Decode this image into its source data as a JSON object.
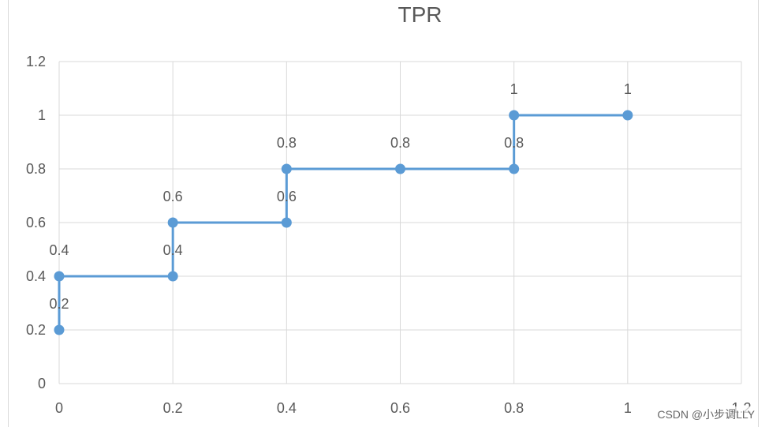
{
  "chart_data": {
    "type": "line",
    "title": "TPR",
    "xlabel": "",
    "ylabel": "",
    "xlim": [
      0,
      1.2
    ],
    "ylim": [
      0,
      1.2
    ],
    "x_ticks": [
      "0",
      "0.2",
      "0.4",
      "0.6",
      "0.8",
      "1",
      "1.2"
    ],
    "y_ticks": [
      "0",
      "0.2",
      "0.4",
      "0.6",
      "0.8",
      "1",
      "1.2"
    ],
    "grid": true,
    "line_style": "straight lines with markers",
    "series": [
      {
        "x": [
          0,
          0,
          0.2,
          0.2,
          0.4,
          0.4,
          0.6,
          0.8,
          0.8,
          1
        ],
        "y": [
          0.2,
          0.4,
          0.4,
          0.6,
          0.6,
          0.8,
          0.8,
          0.8,
          1,
          1
        ],
        "labels": [
          "0.2",
          "0.4",
          "0.4",
          "0.6",
          "0.6",
          "0.8",
          "0.8",
          "0.8",
          "1",
          "1"
        ],
        "color": "#5b9bd5"
      }
    ]
  },
  "watermark": "CSDN @小步调LLY",
  "colors": {
    "grid": "#d9d9d9",
    "text": "#595959",
    "series": "#5b9bd5"
  }
}
